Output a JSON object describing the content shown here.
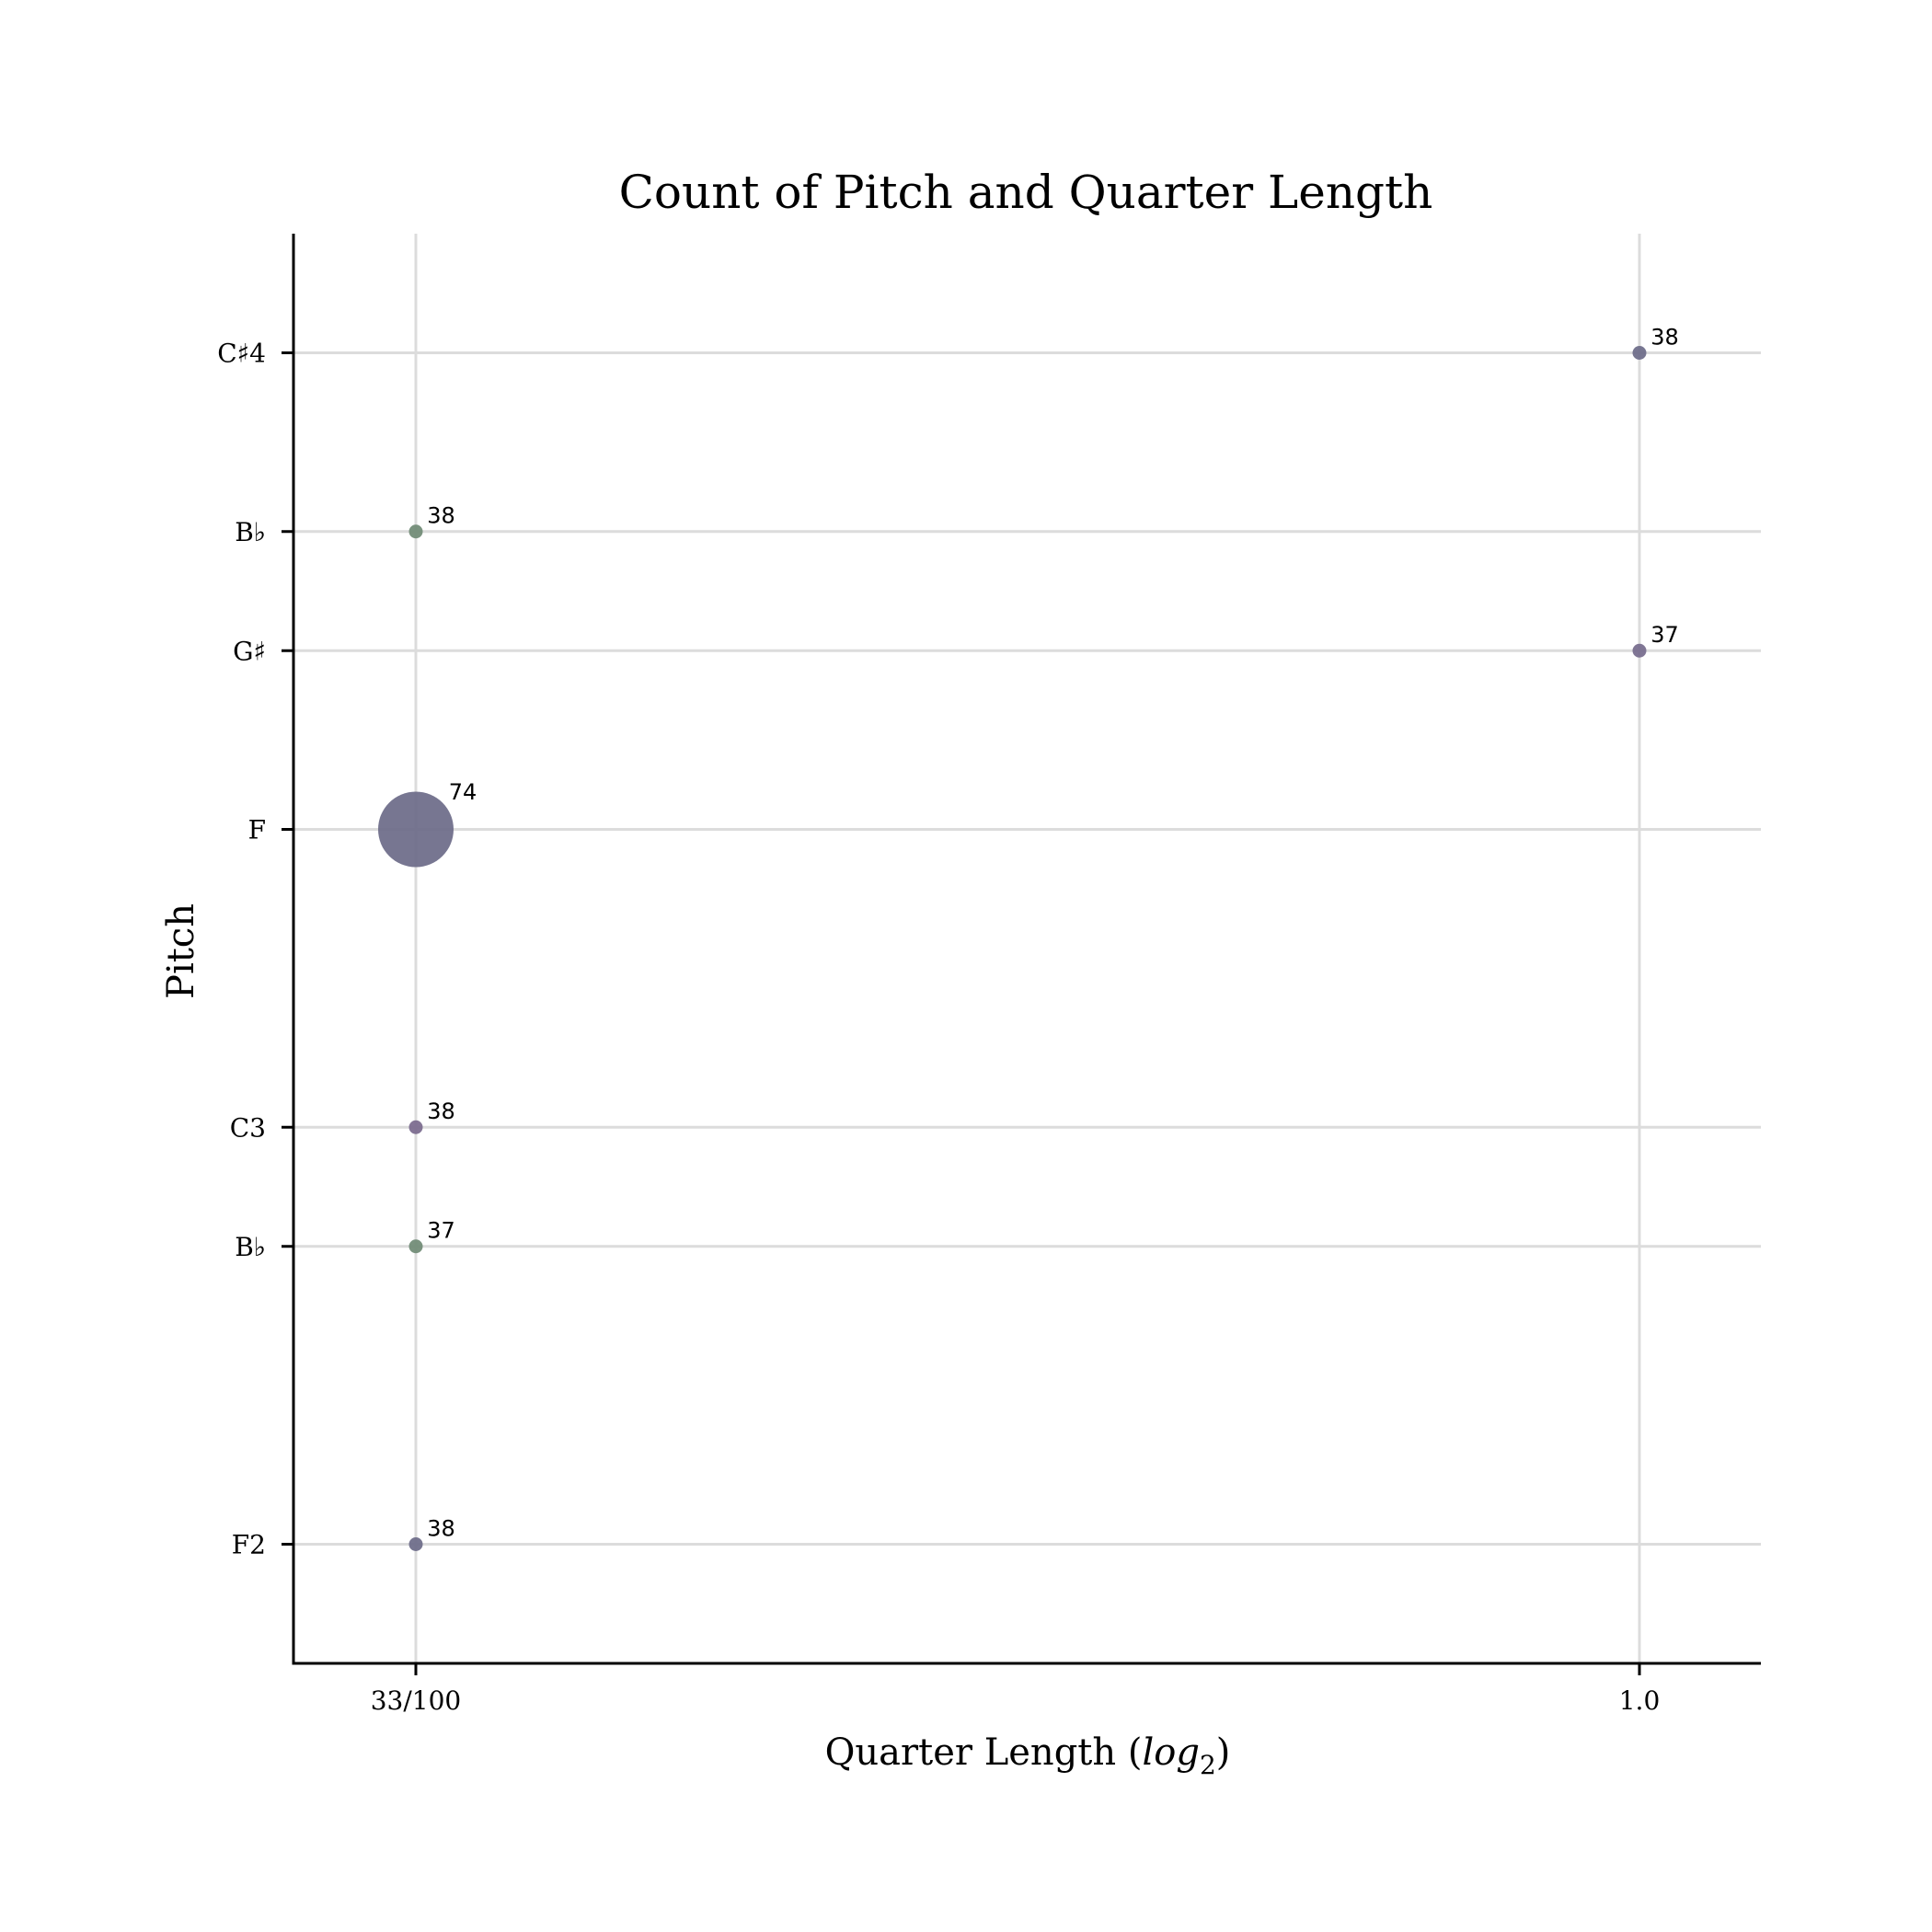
{
  "chart_data": {
    "type": "scatter",
    "title": "Count of Pitch and Quarter Length",
    "xlabel": "Quarter Length (log2)",
    "ylabel": "Pitch",
    "x_scale": "log2",
    "x_ticks": [
      {
        "value": 0.33,
        "label": "33/100"
      },
      {
        "value": 1.0,
        "label": "1.0"
      }
    ],
    "y_categories": [
      "F2",
      "B♭",
      "C3",
      "F",
      "G♯",
      "B♭",
      "C♯4"
    ],
    "y_ticks": [
      {
        "value": 29,
        "label": "F2"
      },
      {
        "value": 34,
        "label": "B♭"
      },
      {
        "value": 36,
        "label": "C3"
      },
      {
        "value": 41,
        "label": "F"
      },
      {
        "value": 44,
        "label": "G♯"
      },
      {
        "value": 46,
        "label": "B♭"
      },
      {
        "value": 49,
        "label": "C♯4"
      }
    ],
    "ylim": [
      27,
      51
    ],
    "grid": true,
    "points": [
      {
        "x": 1.0,
        "y": 49,
        "count": 38,
        "label": "38",
        "color": "#6b6a88"
      },
      {
        "x": 0.33,
        "y": 46,
        "count": 38,
        "label": "38",
        "color": "#6f8a74"
      },
      {
        "x": 1.0,
        "y": 44,
        "count": 37,
        "label": "37",
        "color": "#756a8c"
      },
      {
        "x": 0.33,
        "y": 41,
        "count": 74,
        "label": "74",
        "color": "#6b6a88"
      },
      {
        "x": 0.33,
        "y": 36,
        "count": 38,
        "label": "38",
        "color": "#79698d"
      },
      {
        "x": 0.33,
        "y": 34,
        "count": 37,
        "label": "37",
        "color": "#6f8a74"
      },
      {
        "x": 0.33,
        "y": 29,
        "count": 38,
        "label": "38",
        "color": "#6b6a88"
      }
    ]
  }
}
